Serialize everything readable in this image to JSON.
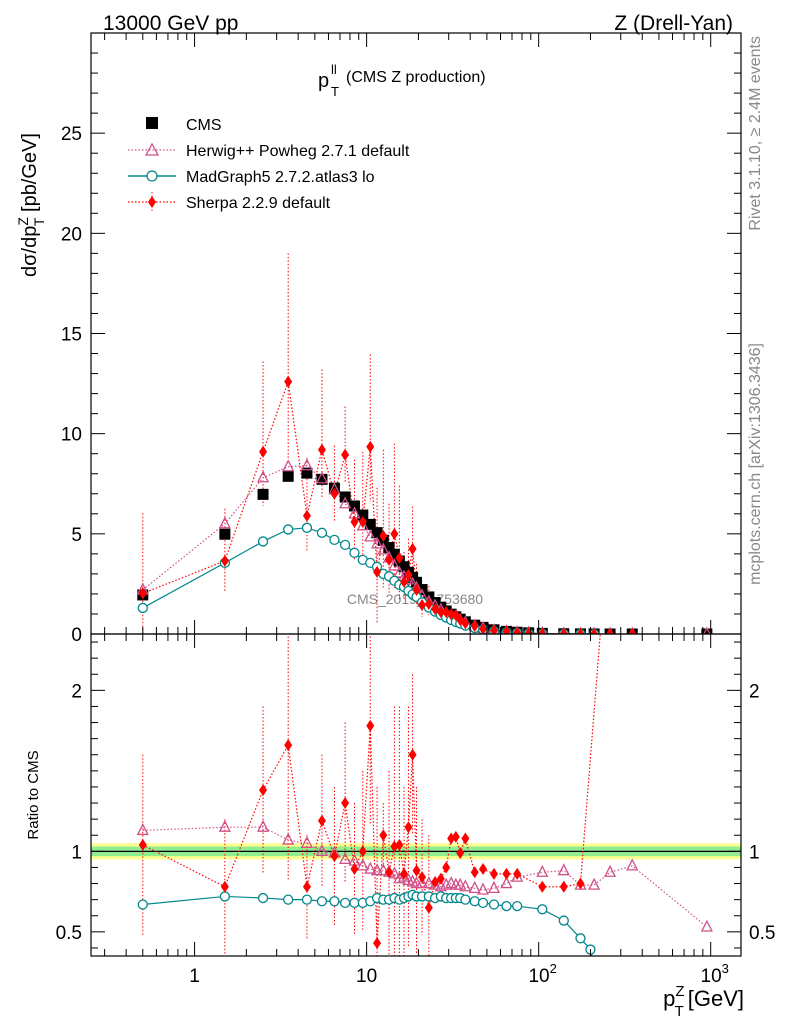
{
  "header": {
    "energy": "13000 GeV pp",
    "process": "Z (Drell-Yan)"
  },
  "side": {
    "rivet": "Rivet 3.1.10, ≥ 2.4M events",
    "mcplots": "mcplots.cern.ch [arXiv:1306.3436]"
  },
  "colors": {
    "cms": "#000000",
    "herwig": "#d0508a",
    "madgraph": "#00878a",
    "sherpa": "#ff0000",
    "band_inner": "#90ee90",
    "band_outer": "#ffff90"
  },
  "chart_data": [
    {
      "type": "scatter",
      "panel": "main",
      "title_main": "p",
      "title_sup": "ll",
      "title_sub": "T",
      "title_rest": "(CMS Z production)",
      "ylabel": {
        "a": "dσ/dp",
        "sup": "Z",
        "sub": "T",
        "b": " [pb/GeV]"
      },
      "ylim": [
        0,
        30
      ],
      "y_ticks": [
        "0",
        "5",
        "10",
        "15",
        "20",
        "25"
      ],
      "xlim": [
        0.25,
        1500
      ],
      "log_x": true,
      "watermark": "CMS_2019_I1753680",
      "legend_placement": "top-left",
      "x": [
        0.5,
        1.5,
        2.5,
        3.5,
        4.5,
        5.5,
        6.5,
        7.5,
        8.5,
        9.5,
        10.5,
        11.5,
        12.5,
        13.5,
        14.5,
        15.5,
        16.5,
        17.5,
        18.5,
        19.5,
        21,
        23,
        25,
        27,
        29,
        31,
        33,
        35,
        37.5,
        42.5,
        47.5,
        55,
        65,
        75,
        87.5,
        105,
        140,
        175,
        210,
        260,
        350,
        950
      ],
      "series": [
        {
          "name": "CMS",
          "values": [
            1.95,
            4.98,
            6.97,
            7.87,
            8.03,
            7.72,
            7.28,
            6.84,
            6.39,
            5.94,
            5.47,
            5.06,
            4.68,
            4.32,
            3.98,
            3.64,
            3.36,
            3.08,
            2.83,
            2.58,
            2.22,
            1.85,
            1.57,
            1.34,
            1.15,
            0.99,
            0.86,
            0.74,
            0.61,
            0.44,
            0.33,
            0.21,
            0.13,
            0.088,
            0.056,
            0.031,
            0.014,
            0.0066,
            0.0034,
            0.0015,
            0.0005,
            2e-05
          ]
        },
        {
          "name": "Herwig++ Powheg 2.7.1 default",
          "values": [
            2.2,
            5.5,
            7.8,
            8.35,
            8.4,
            7.75,
            7.2,
            6.5,
            6.0,
            5.4,
            4.85,
            4.5,
            4.2,
            3.8,
            3.4,
            3.05,
            2.85,
            2.7,
            2.5,
            2.3,
            1.9,
            1.6,
            1.4,
            1.2,
            1.0,
            0.88,
            0.75,
            0.68,
            0.56,
            0.4,
            0.3,
            0.17,
            0.12,
            0.075,
            0.05,
            0.027,
            0.0125,
            0.0055,
            0.0032,
            0.0014,
            0.00045,
            1e-05
          ]
        },
        {
          "name": "MadGraph5 2.7.2.atlas3 lo",
          "values": [
            1.3,
            3.55,
            4.62,
            5.22,
            5.3,
            5.05,
            4.7,
            4.45,
            4.05,
            3.7,
            3.55,
            3.35,
            3.0,
            2.88,
            2.65,
            2.45,
            2.35,
            2.15,
            1.98,
            1.85,
            1.58,
            1.32,
            1.12,
            0.95,
            0.82,
            0.7,
            0.6,
            0.52,
            0.42,
            0.3,
            0.22,
            0.14,
            0.085,
            0.058,
            0.035,
            0.02,
            0.008,
            0.0035,
            0.0015
          ]
        },
        {
          "name": "Sherpa 2.2.9 default",
          "values": [
            2.03,
            3.65,
            9.1,
            12.6,
            5.9,
            9.2,
            7.0,
            8.95,
            5.6,
            5.6,
            9.35,
            3.1,
            4.9,
            3.7,
            5.0,
            3.8,
            2.6,
            2.95,
            4.25,
            2.2,
            1.45,
            1.5,
            1.25,
            1.1,
            1.1,
            0.98,
            0.94,
            0.7,
            0.53,
            0.4,
            0.25,
            0.17,
            0.12,
            0.07,
            0.045,
            0.024,
            0.011,
            0.0052,
            0.0027,
            0.0017,
            0.0004
          ]
        }
      ],
      "error_hi_main": [
        4.0,
        2.6,
        4.5,
        6.4,
        2.9,
        4.0,
        2.4,
        2.4,
        3.1,
        3.5,
        4.6,
        4.2,
        4.3,
        2.8,
        4.5,
        3.6,
        1.5,
        1.8,
        2.1,
        1.3,
        1.0,
        0.9
      ]
    },
    {
      "type": "scatter",
      "panel": "ratio",
      "ylabel": "Ratio to CMS",
      "ylim": [
        0.35,
        2.35
      ],
      "y_ticks": [
        "0.5",
        "1",
        "2"
      ],
      "xlim": [
        0.25,
        1500
      ],
      "log_x": true,
      "xlabel_main": "p",
      "xlabel_sup": "Z",
      "xlabel_sub": "T",
      "xlabel_rest": "[GeV]",
      "x_tick_labels": [
        "1",
        "10",
        "10",
        "10"
      ],
      "x_tick_sups": [
        "",
        "",
        "2",
        "3"
      ],
      "band_inner": 0.03,
      "band_outer": 0.05,
      "series": [
        {
          "name": "Herwig++ Powheg 2.7.1 default",
          "x": [
            0.5,
            1.5,
            2.5,
            3.5,
            4.5,
            5.5,
            6.5,
            7.5,
            8.5,
            9.5,
            10.5,
            11.5,
            12.5,
            13.5,
            14.5,
            15.5,
            16.5,
            17.5,
            18.5,
            19.5,
            21,
            23,
            25,
            27,
            29,
            31,
            33,
            35,
            37.5,
            42.5,
            47.5,
            55,
            65,
            75,
            105,
            140,
            175,
            210,
            260,
            350,
            950
          ],
          "values": [
            1.13,
            1.15,
            1.15,
            1.07,
            1.05,
            1.0,
            0.99,
            0.95,
            0.94,
            0.91,
            0.89,
            0.88,
            0.88,
            0.87,
            0.86,
            0.83,
            0.84,
            0.82,
            0.81,
            0.8,
            0.8,
            0.8,
            0.79,
            0.78,
            0.79,
            0.8,
            0.79,
            0.79,
            0.78,
            0.77,
            0.76,
            0.77,
            0.8,
            0.84,
            0.87,
            0.88,
            0.79,
            0.79,
            0.87,
            0.91,
            0.53
          ]
        },
        {
          "name": "MadGraph5 2.7.2.atlas3 lo",
          "x": [
            0.5,
            1.5,
            2.5,
            3.5,
            4.5,
            5.5,
            6.5,
            7.5,
            8.5,
            9.5,
            10.5,
            11.5,
            12.5,
            13.5,
            14.5,
            15.5,
            16.5,
            17.5,
            18.5,
            19.5,
            21,
            23,
            25,
            27,
            29,
            31,
            33,
            35,
            37.5,
            42.5,
            47.5,
            55,
            65,
            75,
            105,
            140,
            175,
            200,
            210
          ],
          "values": [
            0.67,
            0.72,
            0.71,
            0.7,
            0.7,
            0.69,
            0.69,
            0.68,
            0.68,
            0.68,
            0.69,
            0.71,
            0.7,
            0.7,
            0.71,
            0.7,
            0.71,
            0.72,
            0.73,
            0.72,
            0.72,
            0.72,
            0.71,
            0.72,
            0.71,
            0.71,
            0.71,
            0.71,
            0.7,
            0.69,
            0.68,
            0.67,
            0.66,
            0.66,
            0.64,
            0.57,
            0.46,
            0.39,
            0.3
          ]
        },
        {
          "name": "Sherpa 2.2.9 default",
          "x": [
            0.5,
            1.5,
            2.5,
            3.5,
            4.5,
            5.5,
            6.5,
            7.5,
            8.5,
            9.5,
            10.5,
            11.5,
            12.5,
            13.5,
            14.5,
            15.5,
            16.5,
            17.5,
            18.5,
            19.5,
            21,
            23,
            25,
            27,
            29,
            31,
            33,
            35,
            37.5,
            42.5,
            47.5,
            55,
            65,
            75,
            105,
            140,
            175,
            230
          ],
          "values": [
            1.04,
            0.78,
            1.38,
            1.66,
            0.78,
            1.19,
            0.97,
            1.3,
            0.89,
            1.0,
            1.78,
            0.43,
            1.1,
            0.87,
            1.03,
            1.04,
            0.86,
            1.15,
            1.6,
            0.88,
            0.84,
            0.65,
            0.81,
            0.83,
            0.9,
            1.08,
            1.09,
            0.99,
            1.08,
            0.87,
            0.89,
            0.86,
            0.86,
            0.86,
            0.78,
            0.78,
            0.8,
            2.4
          ]
        }
      ],
      "error_hi_ratio": [
        1.6,
        1.2,
        1.9,
        2.5,
        1.1,
        1.6,
        1.4,
        1.8,
        1.3,
        1.5,
        2.4,
        1.4,
        1.3,
        1.5,
        1.9,
        1.9,
        1.4,
        1.9,
        2.1,
        1.4,
        1.2,
        1.1
      ]
    }
  ]
}
